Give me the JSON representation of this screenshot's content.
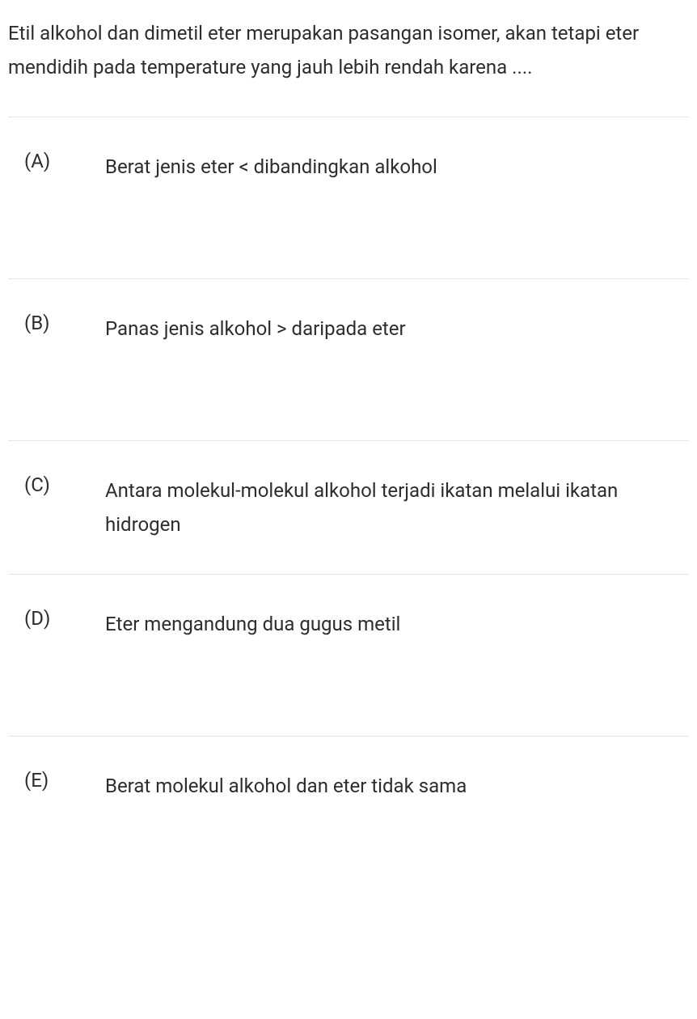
{
  "question": {
    "text": "Etil alkohol dan dimetil eter merupakan pasangan isomer, akan tetapi eter mendidih pada temperature yang jauh lebih rendah karena ...."
  },
  "options": [
    {
      "label": "(A)",
      "text": "Berat jenis eter < dibandingkan alkohol"
    },
    {
      "label": "(B)",
      "text": "Panas jenis alkohol > daripada eter"
    },
    {
      "label": "(C)",
      "text": "Antara molekul-molekul alkohol terjadi ikatan melalui ikatan hidrogen"
    },
    {
      "label": "(D)",
      "text": "Eter mengandung dua gugus metil"
    },
    {
      "label": "(E)",
      "text": "Berat molekul alkohol dan eter tidak sama"
    }
  ],
  "styling": {
    "background_color": "#ffffff",
    "text_color": "#2d2d2d",
    "border_color": "#e5e5e5",
    "font_size": 24,
    "line_height": 1.75
  }
}
